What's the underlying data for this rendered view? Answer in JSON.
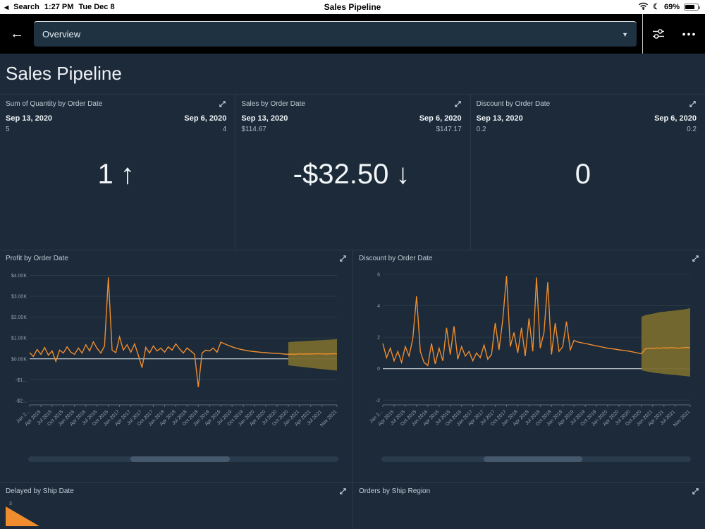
{
  "status_bar": {
    "search_label": "Search",
    "time": "1:27 PM",
    "date": "Tue Dec 8",
    "title": "Sales Pipeline",
    "battery_percent": "69%"
  },
  "nav": {
    "selected_sheet": "Overview"
  },
  "page": {
    "title": "Sales Pipeline"
  },
  "icons": {
    "apple_back": "◀",
    "back": "←",
    "chevron_down": "▼",
    "ellipsis": "•••",
    "moon": "☾"
  },
  "colors": {
    "background": "#1c2a39",
    "nav": "#000000",
    "accent_line": "#ef8d2e",
    "forecast_band": "#776a2d",
    "dropdown": "#1e3242"
  },
  "kpis": [
    {
      "title": "Sum of Quantity by Order Date",
      "current_date": "Sep 13, 2020",
      "current_value": "5",
      "previous_date": "Sep 6, 2020",
      "previous_value": "4",
      "delta_value": "1",
      "delta_arrow": "↑"
    },
    {
      "title": "Sales by Order Date",
      "current_date": "Sep 13, 2020",
      "current_value": "$114.67",
      "previous_date": "Sep 6, 2020",
      "previous_value": "$147.17",
      "delta_value": "-$32.50",
      "delta_arrow": "↓"
    },
    {
      "title": "Discount by Order Date",
      "current_date": "Sep 13, 2020",
      "current_value": "0.2",
      "previous_date": "Sep 6, 2020",
      "previous_value": "0.2",
      "delta_value": "0",
      "delta_arrow": ""
    }
  ],
  "charts": [
    {
      "title": "Profit by Order Date"
    },
    {
      "title": "Discount by Order Date"
    },
    {
      "title": "Delayed by Ship Date"
    },
    {
      "title": "Orders by Ship Region"
    }
  ],
  "chart_data": [
    {
      "type": "line",
      "title": "Profit by Order Date",
      "x_start": "Jan 2015",
      "x_interval": "monthly",
      "ylim": [
        -2.2,
        4.35
      ],
      "yticks": [
        {
          "v": 4,
          "label": "$4.00K"
        },
        {
          "v": 3,
          "label": "$3.00K"
        },
        {
          "v": 2,
          "label": "$2.00K"
        },
        {
          "v": 1,
          "label": "$1.00K"
        },
        {
          "v": 0,
          "label": "$0.00K"
        },
        {
          "v": -1,
          "label": "-$1..."
        },
        {
          "v": -2,
          "label": "-$2..."
        }
      ],
      "xticks": [
        "Jan 2...",
        "Apr 2015",
        "Jul 2015",
        "Oct 2015",
        "Jan 2016",
        "Apr 2016",
        "Jul 2016",
        "Oct 2016",
        "Jan 2017",
        "Apr 2017",
        "Jul 2017",
        "Oct 2017",
        "Jan 2018",
        "Apr 2018",
        "Jul 2018",
        "Oct 2018",
        "Jan 2019",
        "Apr 2019",
        "Jul 2019",
        "Oct 2019",
        "Jan 2020",
        "Apr 2020",
        "Jul 2020",
        "Oct 2020",
        "Jan 2021",
        "Apr 2021",
        "Jul 2021",
        "Nov 2021"
      ],
      "xtick_indices": [
        0,
        3,
        6,
        9,
        12,
        15,
        18,
        21,
        24,
        27,
        30,
        33,
        36,
        39,
        42,
        45,
        48,
        51,
        54,
        57,
        60,
        63,
        66,
        69,
        72,
        75,
        78,
        82
      ],
      "values": [
        0.3,
        0.12,
        0.45,
        0.22,
        0.55,
        0.18,
        0.38,
        -0.12,
        0.42,
        0.28,
        0.58,
        0.32,
        0.22,
        0.52,
        0.28,
        0.68,
        0.38,
        0.82,
        0.5,
        0.28,
        0.62,
        3.9,
        0.42,
        0.3,
        1.05,
        0.42,
        0.68,
        0.32,
        0.72,
        0.18,
        -0.42,
        0.55,
        0.28,
        0.62,
        0.38,
        0.52,
        0.32,
        0.58,
        0.42,
        0.72,
        0.48,
        0.28,
        0.52,
        0.38,
        0.22,
        -1.35,
        0.28,
        0.42,
        0.38,
        0.52,
        0.32,
        0.8,
        0.72,
        0.65,
        0.58,
        0.52,
        0.47,
        0.43,
        0.4,
        0.37,
        0.35,
        0.33,
        0.31,
        0.3,
        0.28,
        0.27,
        0.26,
        0.25,
        0.23,
        0.22,
        0.23,
        0.22,
        0.24,
        0.23,
        0.24,
        0.23,
        0.24,
        0.25,
        0.24,
        0.23,
        0.24,
        0.25,
        0.24
      ],
      "forecast": {
        "start_index": 69,
        "upper": [
          0.8,
          0.82,
          0.83,
          0.84,
          0.85,
          0.86,
          0.87,
          0.88,
          0.89,
          0.9,
          0.91,
          0.92,
          0.93,
          0.95
        ],
        "lower": [
          -0.3,
          -0.33,
          -0.35,
          -0.37,
          -0.39,
          -0.41,
          -0.43,
          -0.45,
          -0.47,
          -0.49,
          -0.51,
          -0.53,
          -0.54,
          -0.56
        ]
      }
    },
    {
      "type": "line",
      "title": "Discount by Order Date",
      "x_start": "Jan 2015",
      "x_interval": "monthly",
      "ylim": [
        -2.3,
        6.4
      ],
      "yticks": [
        {
          "v": 6,
          "label": "6"
        },
        {
          "v": 4,
          "label": "4"
        },
        {
          "v": 2,
          "label": "2"
        },
        {
          "v": 0,
          "label": "0"
        },
        {
          "v": -2,
          "label": "-2"
        }
      ],
      "xticks": [
        "Jan 2...",
        "Apr 2015",
        "Jul 2015",
        "Oct 2015",
        "Jan 2016",
        "Apr 2016",
        "Jul 2016",
        "Oct 2016",
        "Jan 2017",
        "Apr 2017",
        "Jul 2017",
        "Oct 2017",
        "Jan 2018",
        "Apr 2018",
        "Jul 2018",
        "Oct 2018",
        "Jan 2019",
        "Apr 2019",
        "Jul 2019",
        "Oct 2019",
        "Jan 2020",
        "Apr 2020",
        "Jul 2020",
        "Oct 2020",
        "Jan 2021",
        "Apr 2021",
        "Jul 2021",
        "Nov 2021"
      ],
      "xtick_indices": [
        0,
        3,
        6,
        9,
        12,
        15,
        18,
        21,
        24,
        27,
        30,
        33,
        36,
        39,
        42,
        45,
        48,
        51,
        54,
        57,
        60,
        63,
        66,
        69,
        72,
        75,
        78,
        82
      ],
      "values": [
        1.6,
        0.7,
        1.3,
        0.5,
        1.1,
        0.4,
        1.4,
        0.8,
        1.9,
        4.6,
        1.1,
        0.4,
        0.2,
        1.6,
        0.3,
        1.3,
        0.5,
        2.6,
        0.9,
        2.7,
        0.6,
        1.4,
        0.8,
        1.1,
        0.5,
        1.0,
        0.7,
        1.5,
        0.6,
        0.9,
        2.9,
        1.2,
        3.1,
        5.9,
        1.4,
        2.3,
        1.0,
        2.6,
        0.8,
        3.2,
        1.1,
        5.8,
        1.3,
        2.3,
        5.5,
        0.9,
        2.9,
        1.1,
        1.4,
        3.0,
        1.2,
        1.8,
        1.7,
        1.65,
        1.6,
        1.55,
        1.5,
        1.45,
        1.4,
        1.35,
        1.3,
        1.27,
        1.24,
        1.2,
        1.17,
        1.14,
        1.1,
        1.05,
        1.0,
        0.95,
        1.25,
        1.3,
        1.28,
        1.32,
        1.3,
        1.33,
        1.31,
        1.34,
        1.32,
        1.3,
        1.33,
        1.35,
        1.33
      ],
      "forecast": {
        "start_index": 69,
        "upper": [
          3.3,
          3.4,
          3.45,
          3.5,
          3.55,
          3.6,
          3.62,
          3.65,
          3.68,
          3.7,
          3.73,
          3.76,
          3.8,
          3.85
        ],
        "lower": [
          -0.1,
          -0.15,
          -0.2,
          -0.25,
          -0.28,
          -0.3,
          -0.33,
          -0.36,
          -0.38,
          -0.4,
          -0.43,
          -0.45,
          -0.48,
          -0.5
        ]
      }
    },
    {
      "type": "area",
      "title": "Delayed by Ship Date",
      "partial": true,
      "yticks": [
        {
          "v": 3,
          "label": "3"
        }
      ]
    }
  ]
}
